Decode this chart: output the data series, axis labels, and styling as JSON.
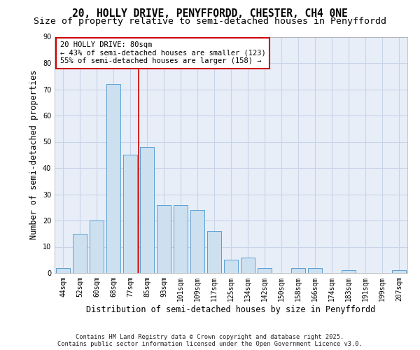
{
  "title1": "20, HOLLY DRIVE, PENYFFORDD, CHESTER, CH4 0NE",
  "title2": "Size of property relative to semi-detached houses in Penyffordd",
  "xlabel": "Distribution of semi-detached houses by size in Penyffordd",
  "ylabel": "Number of semi-detached properties",
  "categories": [
    "44sqm",
    "52sqm",
    "60sqm",
    "68sqm",
    "77sqm",
    "85sqm",
    "93sqm",
    "101sqm",
    "109sqm",
    "117sqm",
    "125sqm",
    "134sqm",
    "142sqm",
    "150sqm",
    "158sqm",
    "166sqm",
    "174sqm",
    "183sqm",
    "191sqm",
    "199sqm",
    "207sqm"
  ],
  "values": [
    2,
    15,
    20,
    72,
    45,
    48,
    26,
    26,
    24,
    16,
    5,
    6,
    2,
    0,
    2,
    2,
    0,
    1,
    0,
    0,
    1
  ],
  "bar_color": "#cce0f0",
  "bar_edge_color": "#5a9fd4",
  "grid_color": "#c8d4e8",
  "background_color": "#e8eef8",
  "annotation_text": "20 HOLLY DRIVE: 80sqm\n← 43% of semi-detached houses are smaller (123)\n55% of semi-detached houses are larger (158) →",
  "vline_x": 4.5,
  "vline_color": "#cc0000",
  "annotation_box_color": "#cc0000",
  "ylim": [
    0,
    90
  ],
  "yticks": [
    0,
    10,
    20,
    30,
    40,
    50,
    60,
    70,
    80,
    90
  ],
  "footer": "Contains HM Land Registry data © Crown copyright and database right 2025.\nContains public sector information licensed under the Open Government Licence v3.0.",
  "title_fontsize": 10.5,
  "subtitle_fontsize": 9.5,
  "axis_label_fontsize": 8.5,
  "tick_fontsize": 7,
  "annotation_fontsize": 7.5,
  "footer_fontsize": 6.2
}
